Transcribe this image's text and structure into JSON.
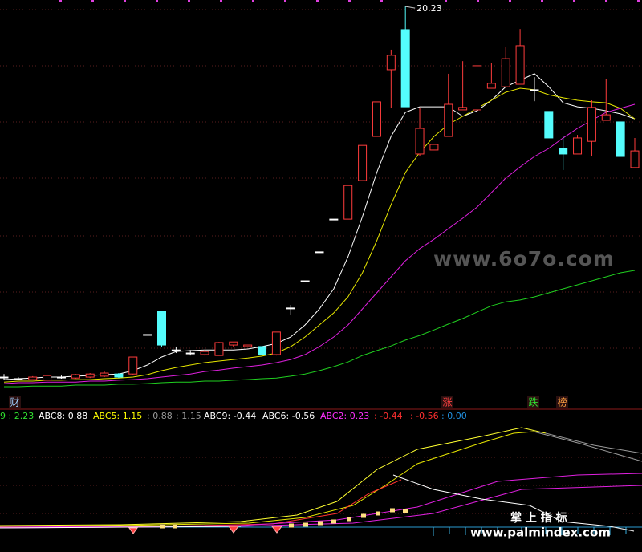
{
  "chart_data": {
    "type": "candlestick",
    "open": [
      8.22,
      8.17,
      8.14,
      8.12,
      8.22,
      8.19,
      8.22,
      8.25,
      8.32,
      8.32,
      9.6,
      10.35,
      9.1,
      9.0,
      8.95,
      8.92,
      9.26,
      9.21,
      9.21,
      8.95,
      10.46,
      11.34,
      12.28,
      13.34,
      13.34,
      14.59,
      16.02,
      18.18,
      19.48,
      15.45,
      15.58,
      16.02,
      16.88,
      16.88,
      17.58,
      17.63,
      17.71,
      17.53,
      16.83,
      15.63,
      15.45,
      15.86,
      16.54,
      16.49,
      15.01
    ],
    "close": [
      8.22,
      8.17,
      8.22,
      8.27,
      8.22,
      8.3,
      8.32,
      8.35,
      8.22,
      8.87,
      9.6,
      9.26,
      9.1,
      9.0,
      9.05,
      9.34,
      9.36,
      9.26,
      8.95,
      9.68,
      10.46,
      11.34,
      12.28,
      13.34,
      14.43,
      15.73,
      17.14,
      18.65,
      16.98,
      16.28,
      15.76,
      17.06,
      16.96,
      18.31,
      17.74,
      18.54,
      18.96,
      17.53,
      15.97,
      15.45,
      15.97,
      16.96,
      16.72,
      15.37,
      15.55
    ],
    "high": [
      8.32,
      8.22,
      8.25,
      8.3,
      8.27,
      8.32,
      8.35,
      8.4,
      8.35,
      8.87,
      9.6,
      10.35,
      9.21,
      9.1,
      9.1,
      9.36,
      9.36,
      9.26,
      9.21,
      9.68,
      10.56,
      11.34,
      12.28,
      13.34,
      14.43,
      15.73,
      17.14,
      18.83,
      20.23,
      16.93,
      15.76,
      18.05,
      18.46,
      18.57,
      18.41,
      18.93,
      19.5,
      17.94,
      16.83,
      16.02,
      16.07,
      17.19,
      17.89,
      16.49,
      15.97
    ],
    "low": [
      8.12,
      8.12,
      8.12,
      8.12,
      8.17,
      8.17,
      8.19,
      8.22,
      8.19,
      8.3,
      9.6,
      9.21,
      9.0,
      8.92,
      8.92,
      8.92,
      9.21,
      9.21,
      8.95,
      8.92,
      10.25,
      11.34,
      12.28,
      13.34,
      13.34,
      14.59,
      16.02,
      16.93,
      16.98,
      15.37,
      15.58,
      16.02,
      16.88,
      16.54,
      17.58,
      17.63,
      17.71,
      17.16,
      15.97,
      14.93,
      15.45,
      15.37,
      16.54,
      15.37,
      15.01
    ],
    "up_color": "#ff3c3c",
    "down_color": "#54fcfc",
    "flat_color": "#ffffff",
    "ylim": [
      7.8,
      20.5
    ],
    "lines": [
      {
        "color": "#ffffff",
        "values": [
          8.14,
          8.17,
          8.19,
          8.22,
          8.22,
          8.25,
          8.27,
          8.3,
          8.32,
          8.43,
          8.61,
          8.87,
          9.05,
          9.08,
          9.1,
          9.1,
          9.1,
          9.13,
          9.21,
          9.31,
          9.52,
          9.91,
          10.43,
          11.08,
          12.12,
          13.42,
          14.85,
          16.02,
          16.8,
          16.98,
          16.98,
          16.98,
          16.67,
          16.85,
          17.19,
          17.63,
          17.84,
          18.05,
          17.63,
          17.11,
          16.98,
          16.93,
          16.85,
          16.75,
          16.59
        ]
      },
      {
        "color": "#e6e600",
        "values": [
          8.06,
          8.09,
          8.09,
          8.12,
          8.12,
          8.14,
          8.14,
          8.17,
          8.19,
          8.22,
          8.3,
          8.43,
          8.53,
          8.61,
          8.69,
          8.74,
          8.79,
          8.84,
          8.9,
          9.0,
          9.21,
          9.52,
          9.91,
          10.3,
          10.82,
          11.6,
          12.64,
          13.81,
          14.85,
          15.5,
          16.02,
          16.41,
          16.67,
          16.93,
          17.19,
          17.45,
          17.58,
          17.53,
          17.37,
          17.27,
          17.19,
          17.14,
          17.11,
          16.93,
          16.59
        ]
      },
      {
        "color": "#e020e0",
        "values": [
          8.01,
          8.04,
          8.04,
          8.06,
          8.06,
          8.06,
          8.09,
          8.09,
          8.12,
          8.14,
          8.17,
          8.22,
          8.27,
          8.32,
          8.4,
          8.45,
          8.51,
          8.56,
          8.61,
          8.69,
          8.79,
          8.95,
          9.21,
          9.52,
          9.91,
          10.43,
          10.95,
          11.47,
          11.99,
          12.38,
          12.69,
          13.03,
          13.37,
          13.73,
          14.2,
          14.67,
          15.03,
          15.37,
          15.63,
          15.97,
          16.28,
          16.54,
          16.8,
          16.93,
          17.06
        ]
      },
      {
        "color": "#20d020",
        "values": [
          7.91,
          7.91,
          7.93,
          7.93,
          7.93,
          7.96,
          7.96,
          7.96,
          7.99,
          7.99,
          8.01,
          8.04,
          8.06,
          8.06,
          8.09,
          8.09,
          8.12,
          8.14,
          8.17,
          8.19,
          8.25,
          8.32,
          8.43,
          8.56,
          8.71,
          8.92,
          9.08,
          9.23,
          9.42,
          9.57,
          9.75,
          9.94,
          10.12,
          10.33,
          10.53,
          10.66,
          10.72,
          10.82,
          10.95,
          11.08,
          11.21,
          11.34,
          11.47,
          11.6,
          11.68
        ]
      }
    ]
  },
  "badges": [
    {
      "text": "财",
      "color": "#9fd0ff"
    },
    {
      "text": "涨",
      "color": "#ff4040"
    },
    {
      "text": "跌",
      "color": "#30e030"
    },
    {
      "text": "榜",
      "color": "#ffa040"
    }
  ],
  "indicator_labels": [
    {
      "text": "9 : 2.23",
      "color": "#30e030"
    },
    {
      "text": "ABC8: 0.88",
      "color": "#ffffff"
    },
    {
      "text": "ABC5: 1.15",
      "color": "#ffff00"
    },
    {
      "text": ": 0.88",
      "color": "#9a9a9a"
    },
    {
      "text": ": 1.15",
      "color": "#9a9a9a"
    },
    {
      "text": "ABC9: -0.44",
      "color": "#ffffff"
    },
    {
      "text": "ABC6: -0.56",
      "color": "#ffffff"
    },
    {
      "text": "ABC2: 0.23",
      "color": "#ff30ff"
    },
    {
      "text": ": -0.44",
      "color": "#ff3030"
    },
    {
      "text": ": -0.56",
      "color": "#ff3030"
    },
    {
      "text": ": 0.00",
      "color": "#2090e0"
    }
  ],
  "watermark": "www.6o7o.com",
  "brand": {
    "title": "掌 上 指 标",
    "url": "www.palmindex.com"
  }
}
